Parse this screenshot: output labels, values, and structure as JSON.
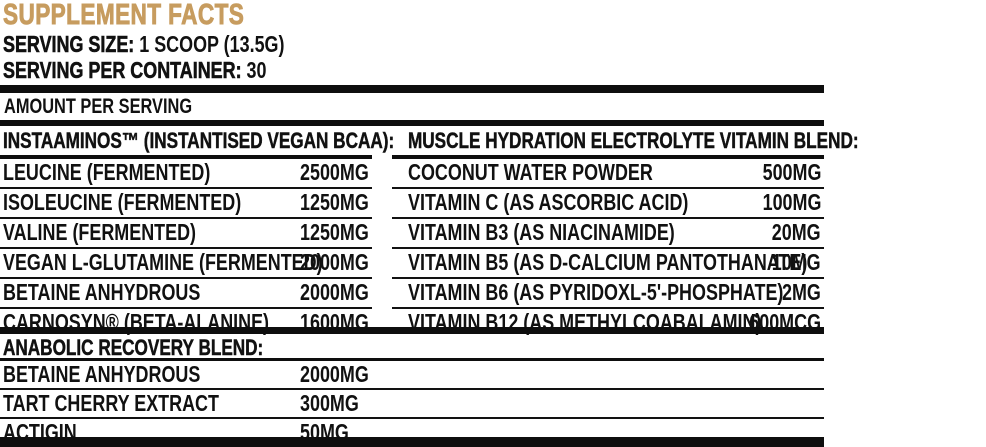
{
  "title": "SUPPLEMENT FACTS",
  "serving": {
    "size_label": "SERVING SIZE:",
    "size_value": " 1 SCOOP (13.5G)",
    "container_label": "SERVING PER CONTAINER:",
    "container_value": " 30"
  },
  "amount_per_serving": "AMOUNT PER SERVING",
  "colors": {
    "accent_gold": "#C79C5F",
    "text": "#111111",
    "rule": "#0e0e0e",
    "background": "#ffffff"
  },
  "left_blend": {
    "header": "INSTAAMINOS™ (INSTANTISED VEGAN BCAA):",
    "rows": [
      {
        "name": "LEUCINE (FERMENTED)",
        "amount": "2500MG"
      },
      {
        "name": "ISOLEUCINE (FERMENTED)",
        "amount": "1250MG"
      },
      {
        "name": "VALINE (FERMENTED)",
        "amount": "1250MG"
      },
      {
        "name": "VEGAN L-GLUTAMINE (FERMENTED)",
        "amount": "2000MG"
      },
      {
        "name": "BETAINE ANHYDROUS",
        "amount": "2000MG"
      },
      {
        "name": "CARNOSYN® (BETA-ALANINE)",
        "amount": "1600MG"
      }
    ]
  },
  "right_blend": {
    "header": "MUSCLE HYDRATION ELECTROLYTE VITAMIN BLEND:",
    "rows": [
      {
        "name": "COCONUT WATER POWDER",
        "amount": "500MG"
      },
      {
        "name": "VITAMIN C (AS ASCORBIC ACID)",
        "amount": "100MG"
      },
      {
        "name": "VITAMIN B3 (AS NIACINAMIDE)",
        "amount": "20MG"
      },
      {
        "name": "VITAMIN B5 (AS D-CALCIUM PANTOTHANATE)",
        "amount": "10MG"
      },
      {
        "name": "VITAMIN B6 (AS PYRIDOXL-5'-PHOSPHATE)",
        "amount": "2MG"
      },
      {
        "name": "VITAMIN B12 (AS METHYLCOABALAMIN)",
        "amount": "600MCG"
      }
    ]
  },
  "bottom_blend": {
    "header": "ANABOLIC RECOVERY BLEND:",
    "rows": [
      {
        "name": "BETAINE ANHYDROUS",
        "amount": "2000MG"
      },
      {
        "name": "TART CHERRY EXTRACT",
        "amount": "300MG"
      },
      {
        "name": "ACTIGIN",
        "amount": "50MG"
      }
    ]
  }
}
